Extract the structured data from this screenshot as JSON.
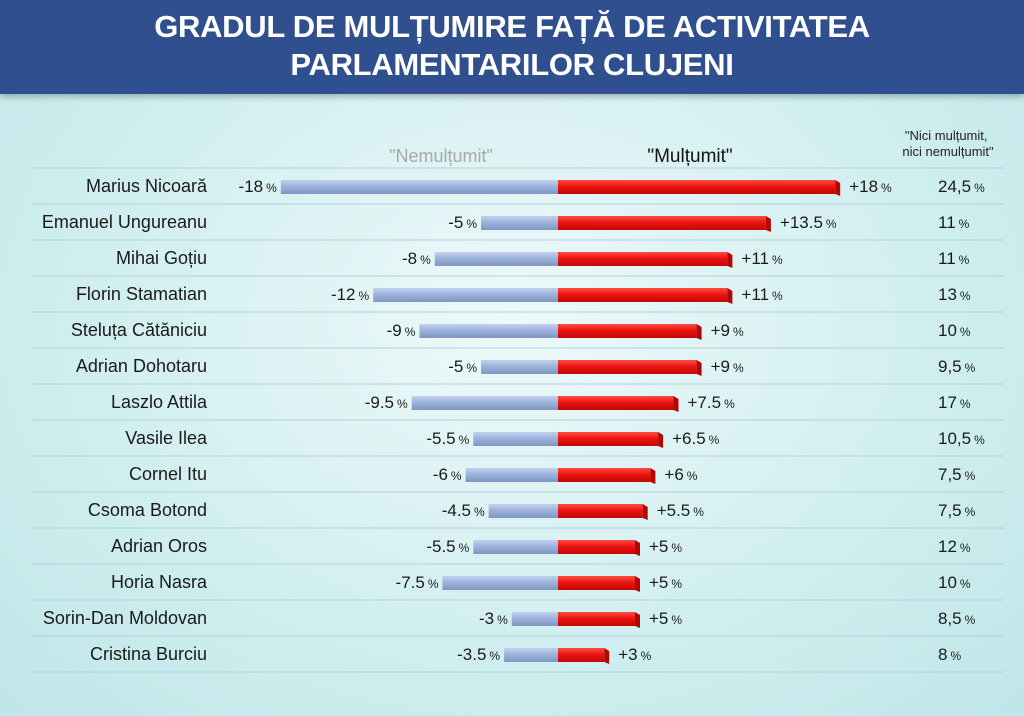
{
  "header": {
    "title": "GRADUL DE MULȚUMIRE FAȚĂ DE ACTIVITATEA\nPARLAMENTARILOR CLUJENI"
  },
  "colors": {
    "header_bg": "#2f4f8e",
    "dissatisfied_bar": "#9ab0d8",
    "satisfied_bar": "#e8120f",
    "dissatisfied_header_text": "#a8a8a8",
    "divider": "#b4cfe0"
  },
  "chart_data": {
    "type": "bar",
    "orientation": "horizontal-diverging",
    "title": "GRADUL DE MULȚUMIRE FAȚĂ DE ACTIVITATEA PARLAMENTARILOR CLUJENI",
    "column_headers": {
      "dissatisfied": "\"Nemulțumit\"",
      "satisfied": "\"Mulțumit\"",
      "neutral": "\"Nici mulțumit,\nnici nemulțumit\""
    },
    "categories": [
      "Marius Nicoară",
      "Emanuel Ungureanu",
      "Mihai Goțiu",
      "Florin Stamatian",
      "Steluța Cătăniciu",
      "Adrian Dohotaru",
      "Laszlo Attila",
      "Vasile Ilea",
      "Cornel Itu",
      "Csoma Botond",
      "Adrian Oros",
      "Horia Nasra",
      "Sorin-Dan Moldovan",
      "Cristina Burciu"
    ],
    "series": [
      {
        "name": "\"Nemulțumit\"",
        "values": [
          -18,
          -5,
          -8,
          -12,
          -9,
          -5,
          -9.5,
          -5.5,
          -6,
          -4.5,
          -5.5,
          -7.5,
          -3,
          -3.5
        ],
        "labels": [
          "-18",
          "-5",
          "-8",
          "-12",
          "-9",
          "-5",
          "-9.5",
          "-5.5",
          "-6",
          "-4.5",
          "-5.5",
          "-7.5",
          "-3",
          "-3.5"
        ]
      },
      {
        "name": "\"Mulțumit\"",
        "values": [
          18,
          13.5,
          11,
          11,
          9,
          9,
          7.5,
          6.5,
          6,
          5.5,
          5,
          5,
          5,
          3
        ],
        "labels": [
          "+18",
          "+13.5",
          "+11",
          "+11",
          "+9",
          "+9",
          "+7.5",
          "+6.5",
          "+6",
          "+5.5",
          "+5",
          "+5",
          "+5",
          "+3"
        ]
      },
      {
        "name": "\"Nici mulțumit, nici nemulțumit\"",
        "values": [
          24.5,
          11,
          11,
          13,
          10,
          9.5,
          17,
          10.5,
          7.5,
          7.5,
          12,
          10,
          8.5,
          8
        ],
        "labels": [
          "24,5",
          "11",
          "11",
          "13",
          "10",
          "9,5",
          "17",
          "10,5",
          "7,5",
          "7,5",
          "12",
          "10",
          "8,5",
          "8"
        ]
      }
    ],
    "unit": "%",
    "grid": false,
    "legend": "column headers above bars"
  }
}
